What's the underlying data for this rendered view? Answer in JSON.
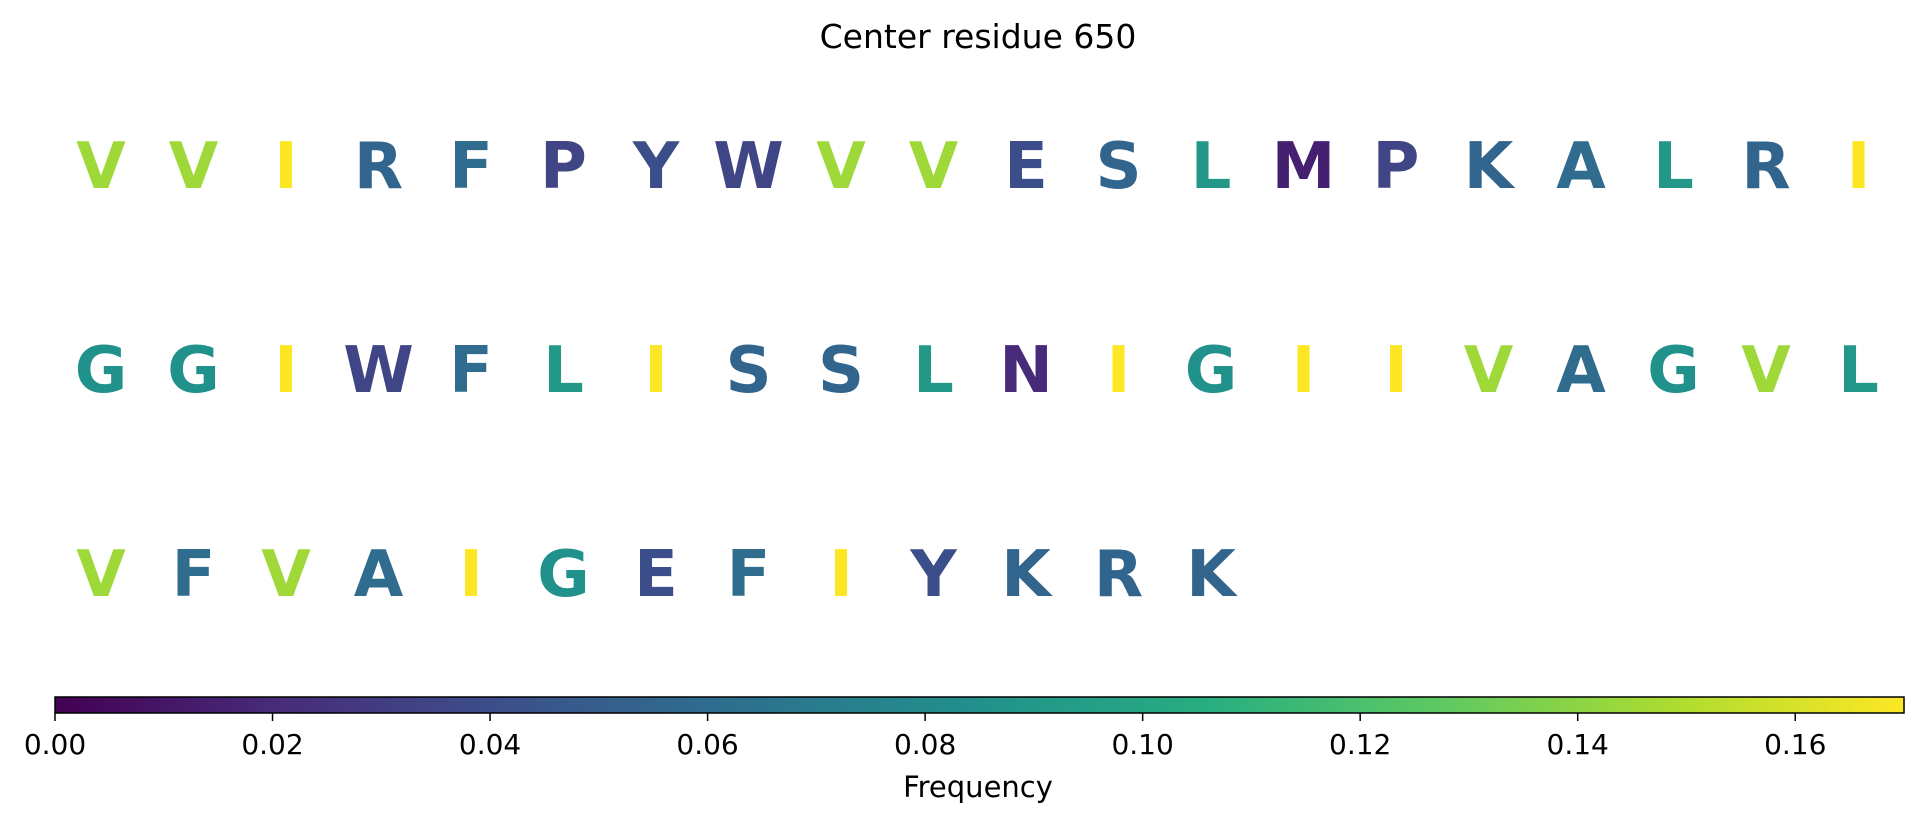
{
  "chart_data": {
    "type": "table",
    "title": "Center residue 650",
    "colorbar": {
      "label": "Frequency",
      "range": [
        0.0,
        0.17
      ],
      "ticks": [
        "0.00",
        "0.02",
        "0.04",
        "0.06",
        "0.08",
        "0.10",
        "0.12",
        "0.14",
        "0.16"
      ],
      "tick_values": [
        0.0,
        0.02,
        0.04,
        0.06,
        0.08,
        0.1,
        0.12,
        0.14,
        0.16
      ],
      "colormap": "viridis",
      "orientation": "horizontal"
    },
    "rows": [
      [
        {
          "residue": "V",
          "frequency": 0.145
        },
        {
          "residue": "V",
          "frequency": 0.145
        },
        {
          "residue": "I",
          "frequency": 0.17
        },
        {
          "residue": "R",
          "frequency": 0.055
        },
        {
          "residue": "F",
          "frequency": 0.06
        },
        {
          "residue": "P",
          "frequency": 0.035
        },
        {
          "residue": "Y",
          "frequency": 0.04
        },
        {
          "residue": "W",
          "frequency": 0.035
        },
        {
          "residue": "V",
          "frequency": 0.145
        },
        {
          "residue": "V",
          "frequency": 0.145
        },
        {
          "residue": "E",
          "frequency": 0.04
        },
        {
          "residue": "S",
          "frequency": 0.055
        },
        {
          "residue": "L",
          "frequency": 0.09
        },
        {
          "residue": "M",
          "frequency": 0.015
        },
        {
          "residue": "P",
          "frequency": 0.035
        },
        {
          "residue": "K",
          "frequency": 0.055
        },
        {
          "residue": "A",
          "frequency": 0.06
        },
        {
          "residue": "L",
          "frequency": 0.09
        },
        {
          "residue": "R",
          "frequency": 0.055
        },
        {
          "residue": "I",
          "frequency": 0.17
        }
      ],
      [
        {
          "residue": "G",
          "frequency": 0.085
        },
        {
          "residue": "G",
          "frequency": 0.085
        },
        {
          "residue": "I",
          "frequency": 0.17
        },
        {
          "residue": "W",
          "frequency": 0.035
        },
        {
          "residue": "F",
          "frequency": 0.06
        },
        {
          "residue": "L",
          "frequency": 0.09
        },
        {
          "residue": "I",
          "frequency": 0.17
        },
        {
          "residue": "S",
          "frequency": 0.055
        },
        {
          "residue": "S",
          "frequency": 0.055
        },
        {
          "residue": "L",
          "frequency": 0.09
        },
        {
          "residue": "N",
          "frequency": 0.02
        },
        {
          "residue": "I",
          "frequency": 0.17
        },
        {
          "residue": "G",
          "frequency": 0.085
        },
        {
          "residue": "I",
          "frequency": 0.17
        },
        {
          "residue": "I",
          "frequency": 0.17
        },
        {
          "residue": "V",
          "frequency": 0.145
        },
        {
          "residue": "A",
          "frequency": 0.06
        },
        {
          "residue": "G",
          "frequency": 0.085
        },
        {
          "residue": "V",
          "frequency": 0.145
        },
        {
          "residue": "L",
          "frequency": 0.09
        }
      ],
      [
        {
          "residue": "V",
          "frequency": 0.145
        },
        {
          "residue": "F",
          "frequency": 0.06
        },
        {
          "residue": "V",
          "frequency": 0.145
        },
        {
          "residue": "A",
          "frequency": 0.06
        },
        {
          "residue": "I",
          "frequency": 0.17
        },
        {
          "residue": "G",
          "frequency": 0.085
        },
        {
          "residue": "E",
          "frequency": 0.04
        },
        {
          "residue": "F",
          "frequency": 0.06
        },
        {
          "residue": "I",
          "frequency": 0.17
        },
        {
          "residue": "Y",
          "frequency": 0.04
        },
        {
          "residue": "K",
          "frequency": 0.055
        },
        {
          "residue": "R",
          "frequency": 0.055
        },
        {
          "residue": "K",
          "frequency": 0.055
        }
      ]
    ]
  }
}
